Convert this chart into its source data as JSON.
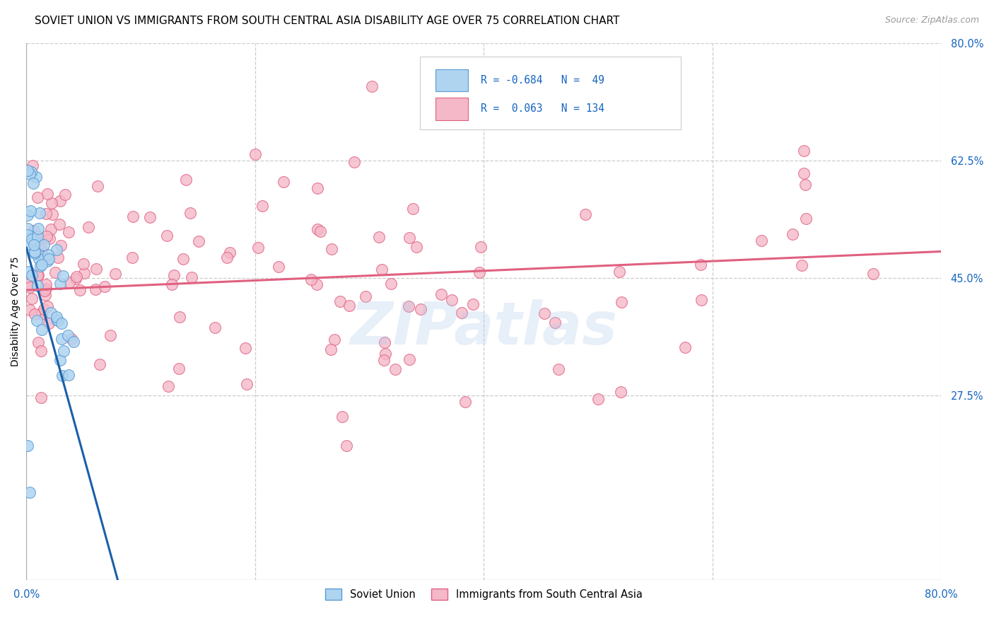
{
  "title": "SOVIET UNION VS IMMIGRANTS FROM SOUTH CENTRAL ASIA DISABILITY AGE OVER 75 CORRELATION CHART",
  "source": "Source: ZipAtlas.com",
  "ylabel": "Disability Age Over 75",
  "xlim": [
    0.0,
    0.8
  ],
  "ylim": [
    0.0,
    0.8
  ],
  "yticks": [
    0.275,
    0.45,
    0.625,
    0.8
  ],
  "ytick_labels": [
    "27.5%",
    "45.0%",
    "62.5%",
    "80.0%"
  ],
  "xtick_labels_show": [
    "0.0%",
    "80.0%"
  ],
  "xtick_positions_show": [
    0.0,
    0.8
  ],
  "series1_name": "Soviet Union",
  "series1_color": "#aed4f0",
  "series1_edge_color": "#5b9bd5",
  "series1_R": -0.684,
  "series1_N": 49,
  "series1_line_color": "#1a5fa8",
  "series2_name": "Immigrants from South Central Asia",
  "series2_color": "#f4b8c8",
  "series2_edge_color": "#e06080",
  "series2_R": 0.063,
  "series2_N": 134,
  "series2_line_color": "#e06080",
  "grid_color": "#cccccc",
  "background_color": "#ffffff",
  "watermark": "ZIPatlas",
  "title_fontsize": 11,
  "axis_label_fontsize": 10,
  "tick_fontsize": 10.5,
  "legend_color": "#1565c0",
  "scatter_size": 130,
  "trend1_x0": 0.0,
  "trend1_y0": 0.495,
  "trend1_slope": -6.2,
  "trend2_x0": 0.0,
  "trend2_y0": 0.432,
  "trend2_slope": 0.072
}
